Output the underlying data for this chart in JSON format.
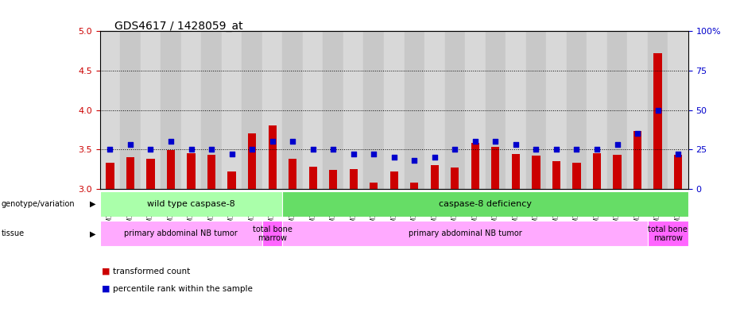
{
  "title": "GDS4617 / 1428059_at",
  "samples": [
    "GSM1044930",
    "GSM1044931",
    "GSM1044932",
    "GSM1044947",
    "GSM1044948",
    "GSM1044949",
    "GSM1044950",
    "GSM1044951",
    "GSM1044952",
    "GSM1044933",
    "GSM1044934",
    "GSM1044935",
    "GSM1044936",
    "GSM1044937",
    "GSM1044938",
    "GSM1044939",
    "GSM1044940",
    "GSM1044941",
    "GSM1044942",
    "GSM1044943",
    "GSM1044944",
    "GSM1044945",
    "GSM1044946",
    "GSM1044953",
    "GSM1044954",
    "GSM1044955",
    "GSM1044956",
    "GSM1044957",
    "GSM1044958"
  ],
  "red_values": [
    3.33,
    3.4,
    3.38,
    3.49,
    3.45,
    3.43,
    3.22,
    3.7,
    3.8,
    3.38,
    3.28,
    3.24,
    3.25,
    3.08,
    3.22,
    3.08,
    3.3,
    3.27,
    3.58,
    3.53,
    3.44,
    3.42,
    3.35,
    3.33,
    3.45,
    3.43,
    3.73,
    4.72,
    3.43
  ],
  "blue_values": [
    25,
    28,
    25,
    30,
    25,
    25,
    22,
    25,
    30,
    30,
    25,
    25,
    22,
    22,
    20,
    18,
    20,
    25,
    30,
    30,
    28,
    25,
    25,
    25,
    25,
    28,
    35,
    50,
    22
  ],
  "ylim": [
    3.0,
    5.0
  ],
  "y2lim": [
    0,
    100
  ],
  "yticks": [
    3.0,
    3.5,
    4.0,
    4.5,
    5.0
  ],
  "y2ticks": [
    0,
    25,
    50,
    75,
    100
  ],
  "y2ticklabels": [
    "0",
    "25",
    "50",
    "75",
    "100%"
  ],
  "dotted_lines": [
    3.5,
    4.0,
    4.5
  ],
  "bar_color": "#cc0000",
  "dot_color": "#0000cc",
  "bar_bottom": 3.0,
  "genotype_groups": [
    {
      "label": "wild type caspase-8",
      "start": 0,
      "end": 9,
      "color": "#aaffaa"
    },
    {
      "label": "caspase-8 deficiency",
      "start": 9,
      "end": 29,
      "color": "#66dd66"
    }
  ],
  "tissue_groups": [
    {
      "label": "primary abdominal NB tumor",
      "start": 0,
      "end": 8,
      "color": "#ffaaff"
    },
    {
      "label": "total bone\nmarrow",
      "start": 8,
      "end": 9,
      "color": "#ff66ff"
    },
    {
      "label": "primary abdominal NB tumor",
      "start": 9,
      "end": 27,
      "color": "#ffaaff"
    },
    {
      "label": "total bone\nmarrow",
      "start": 27,
      "end": 29,
      "color": "#ff66ff"
    }
  ],
  "legend_items": [
    {
      "label": "transformed count",
      "color": "#cc0000"
    },
    {
      "label": "percentile rank within the sample",
      "color": "#0000cc"
    }
  ],
  "tick_label_color_even": "#cccccc",
  "tick_label_color_odd": "#bbbbbb"
}
